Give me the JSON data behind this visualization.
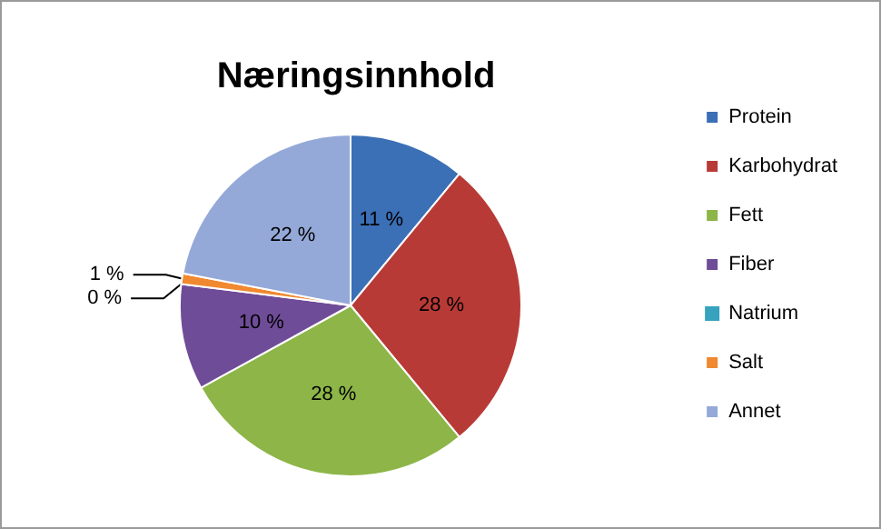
{
  "chart_data": {
    "type": "pie",
    "title": "Næringsinnhold",
    "categories": [
      "Protein",
      "Karbohydrat",
      "Fett",
      "Fiber",
      "Natrium",
      "Salt",
      "Annet"
    ],
    "values": [
      11,
      28,
      28,
      10,
      0,
      1,
      22
    ],
    "value_labels": [
      "11 %",
      "28 %",
      "28 %",
      "10 %",
      "0 %",
      "1 %",
      "22 %"
    ],
    "colors": [
      "#3b6fb6",
      "#b83a36",
      "#8db548",
      "#6f4c98",
      "#36a2bd",
      "#f0892f",
      "#94a9d8"
    ],
    "legend": "right"
  }
}
